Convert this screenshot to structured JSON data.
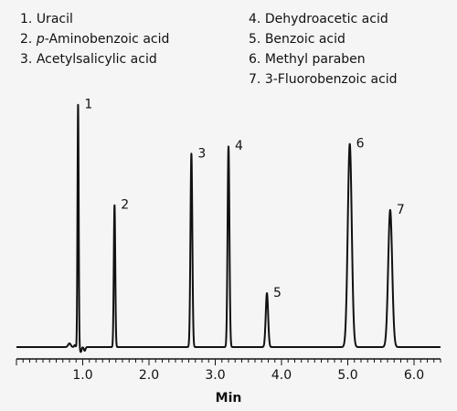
{
  "chart_data": {
    "type": "line",
    "title": "",
    "xlabel": "Min",
    "ylabel": "",
    "xlim": [
      0,
      6.3
    ],
    "ylim": [
      0,
      1.0
    ],
    "x_ticks": [
      {
        "value": 1.0,
        "label": "1.0"
      },
      {
        "value": 2.0,
        "label": "2.0"
      },
      {
        "value": 3.0,
        "label": "3.0"
      },
      {
        "value": 4.0,
        "label": "4.0"
      },
      {
        "value": 5.0,
        "label": "5.0"
      },
      {
        "value": 6.0,
        "label": "6.0"
      }
    ],
    "minor_tick_step": 0.1,
    "grid": false,
    "legend_position": "top",
    "legend": [
      {
        "num": "1.",
        "prefix": "",
        "italic": "",
        "name": "Uracil",
        "column": "left"
      },
      {
        "num": "2.",
        "prefix": "",
        "italic": "p",
        "name": "-Aminobenzoic acid",
        "column": "left"
      },
      {
        "num": "3.",
        "prefix": "",
        "italic": "",
        "name": "Acetylsalicylic acid",
        "column": "left"
      },
      {
        "num": "4.",
        "prefix": "",
        "italic": "",
        "name": "Dehydroacetic acid",
        "column": "right"
      },
      {
        "num": "5.",
        "prefix": "",
        "italic": "",
        "name": "Benzoic acid",
        "column": "right"
      },
      {
        "num": "6.",
        "prefix": "",
        "italic": "",
        "name": "Methyl paraben",
        "column": "right"
      },
      {
        "num": "7.",
        "prefix": "",
        "italic": "",
        "name": "3-Fluorobenzoic acid",
        "column": "right"
      }
    ],
    "peaks": [
      {
        "label": "1",
        "rt": 0.93,
        "height": 0.99,
        "width": 0.009
      },
      {
        "label": "2",
        "rt": 1.48,
        "height": 0.58,
        "width": 0.011
      },
      {
        "label": "3",
        "rt": 2.64,
        "height": 0.79,
        "width": 0.014
      },
      {
        "label": "4",
        "rt": 3.2,
        "height": 0.82,
        "width": 0.014
      },
      {
        "label": "5",
        "rt": 3.78,
        "height": 0.22,
        "width": 0.018
      },
      {
        "label": "6",
        "rt": 5.03,
        "height": 0.83,
        "width": 0.03
      },
      {
        "label": "7",
        "rt": 5.64,
        "height": 0.56,
        "width": 0.03
      }
    ],
    "baseline_disturbance": [
      {
        "rt": 0.8,
        "height": 0.015,
        "width": 0.02
      },
      {
        "rt": 0.88,
        "height": 0.008,
        "width": 0.01
      },
      {
        "rt": 0.97,
        "height": -0.02,
        "width": 0.012
      },
      {
        "rt": 1.03,
        "height": -0.015,
        "width": 0.012
      }
    ],
    "line_color": "#111111"
  }
}
